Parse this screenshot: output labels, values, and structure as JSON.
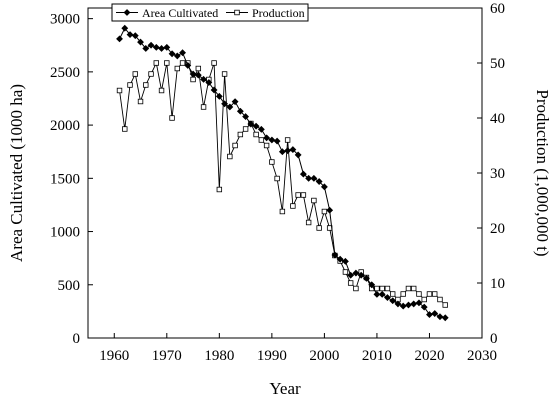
{
  "chart_data": {
    "type": "line",
    "title": "",
    "xlabel": "Year",
    "ylabel": "Area Cultivated (1000 ha)",
    "y2label": "Production (1,000,000 t)",
    "xlim": [
      1955,
      2030
    ],
    "ylim": [
      0,
      3100
    ],
    "y2lim": [
      0,
      60
    ],
    "xticks": [
      1960,
      1970,
      1980,
      1990,
      2000,
      2010,
      2020,
      2030
    ],
    "yticks": [
      0,
      500,
      1000,
      1500,
      2000,
      2500,
      3000
    ],
    "y2ticks": [
      0,
      10,
      20,
      30,
      40,
      50,
      60
    ],
    "grid": false,
    "legend_position": "top-center",
    "x": [
      1961,
      1962,
      1963,
      1964,
      1965,
      1966,
      1967,
      1968,
      1969,
      1970,
      1971,
      1972,
      1973,
      1974,
      1975,
      1976,
      1977,
      1978,
      1979,
      1980,
      1981,
      1982,
      1983,
      1984,
      1985,
      1986,
      1987,
      1988,
      1989,
      1990,
      1991,
      1992,
      1993,
      1994,
      1995,
      1996,
      1997,
      1998,
      1999,
      2000,
      2001,
      2002,
      2003,
      2004,
      2005,
      2006,
      2007,
      2008,
      2009,
      2010,
      2011,
      2012,
      2013,
      2014,
      2015,
      2016,
      2017,
      2018,
      2019,
      2020,
      2021,
      2022,
      2023
    ],
    "series": [
      {
        "name": "Area Cultivated",
        "axis": "left",
        "marker": "filled-diamond",
        "color": "#000000",
        "values": [
          2810,
          2910,
          2850,
          2840,
          2780,
          2720,
          2750,
          2730,
          2720,
          2730,
          2670,
          2650,
          2680,
          2560,
          2480,
          2470,
          2430,
          2400,
          2330,
          2270,
          2200,
          2170,
          2220,
          2130,
          2080,
          2010,
          1990,
          1960,
          1880,
          1860,
          1850,
          1750,
          1760,
          1770,
          1720,
          1540,
          1500,
          1500,
          1470,
          1420,
          1200,
          780,
          740,
          720,
          590,
          610,
          590,
          560,
          500,
          410,
          410,
          380,
          350,
          320,
          300,
          310,
          320,
          330,
          290,
          220,
          230,
          200,
          190
        ]
      },
      {
        "name": "Production",
        "axis": "right",
        "marker": "open-square",
        "color": "#000000",
        "values": [
          45,
          38,
          46,
          48,
          43,
          46,
          48,
          50,
          45,
          50,
          40,
          49,
          50,
          50,
          47,
          49,
          42,
          47,
          50,
          27,
          48,
          33,
          35,
          37,
          38,
          39,
          37,
          36,
          35,
          32,
          29,
          23,
          36,
          24,
          26,
          26,
          21,
          25,
          20,
          23,
          20,
          15,
          14,
          12,
          10,
          9,
          12,
          11,
          9,
          9,
          9,
          9,
          8,
          7,
          8,
          9,
          9,
          8,
          7,
          8,
          8,
          7,
          6
        ]
      }
    ]
  }
}
